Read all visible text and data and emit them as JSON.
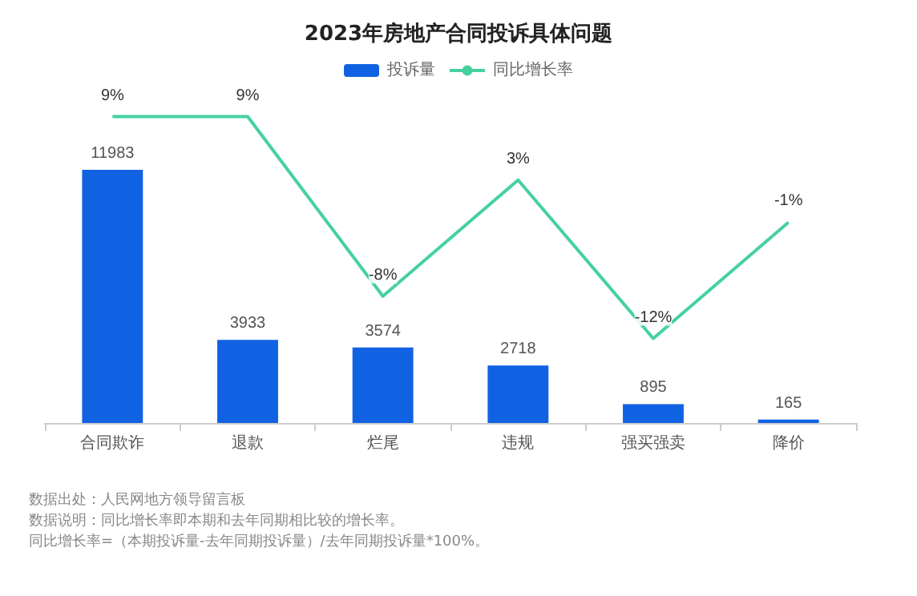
{
  "chart_data": {
    "type": "bar",
    "title": "2023年房地产合同投诉具体问题",
    "categories": [
      "合同欺诈",
      "退款",
      "烂尾",
      "违规",
      "强买强卖",
      "降价"
    ],
    "series": [
      {
        "name": "投诉量",
        "color": "#1162e3",
        "values": [
          11983,
          3933,
          3574,
          2718,
          895,
          165
        ],
        "data_labels": true
      },
      {
        "name": "同比增长率",
        "type": "line",
        "axis": "y2",
        "color": "#45d19e",
        "values": [
          9,
          9,
          -8,
          3,
          -12,
          -1
        ],
        "value_labels": [
          "9%",
          "9%",
          "-8%",
          "3%",
          "-12%",
          "-1%"
        ]
      }
    ],
    "tick_labels": "x",
    "grid": false,
    "legend": "top",
    "marker": "none",
    "annotations": [
      "数据出处：人民网地方领导留言板",
      "数据说明：同比增长率即本期和去年同期相比较的增长率。",
      "同比增长率=（本期投诉量-去年同期投诉量）/去年同期投诉量*100%。"
    ]
  }
}
